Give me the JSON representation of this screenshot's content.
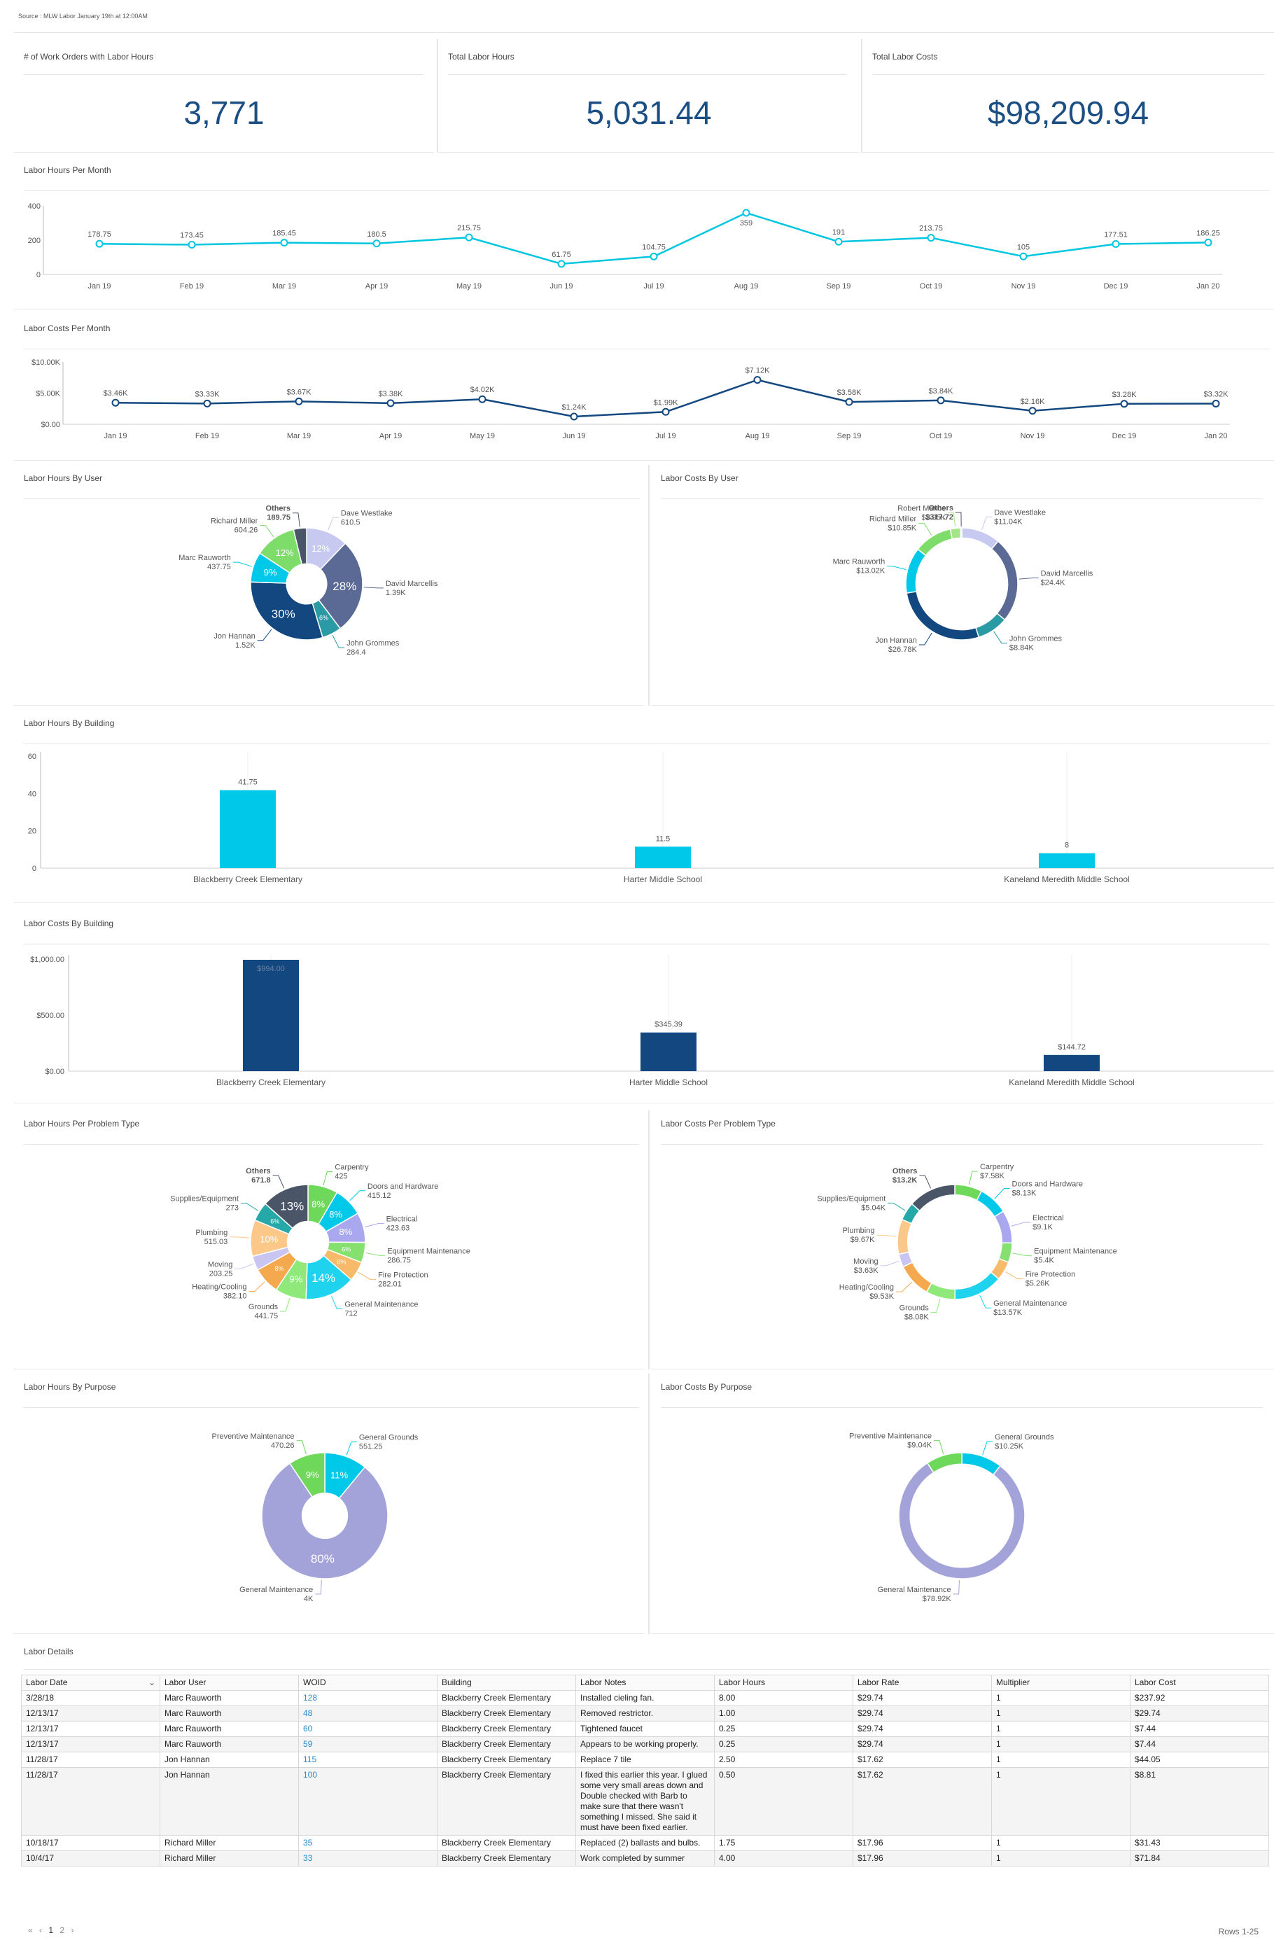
{
  "source": "Source : MLW Labor January 19th at 12:00AM",
  "kpis": [
    {
      "label": "# of Work Orders with Labor Hours",
      "value": "3,771"
    },
    {
      "label": "Total Labor Hours",
      "value": "5,031.44"
    },
    {
      "label": "Total Labor Costs",
      "value": "$98,209.94"
    }
  ],
  "titles": {
    "hours_month": "Labor Hours Per Month",
    "costs_month": "Labor Costs Per Month",
    "hours_user": "Labor Hours By User",
    "costs_user": "Labor Costs By User",
    "hours_building": "Labor Hours By Building",
    "costs_building": "Labor Costs By Building",
    "hours_problem": "Labor Hours Per Problem Type",
    "costs_problem": "Labor Costs Per Problem Type",
    "hours_purpose": "Labor Hours By Purpose",
    "costs_purpose": "Labor Costs By Purpose",
    "details": "Labor Details"
  },
  "chart_data": [
    {
      "id": "hours_month",
      "type": "line",
      "categories": [
        "Jan 19",
        "Feb 19",
        "Mar 19",
        "Apr 19",
        "May 19",
        "Jun 19",
        "Jul 19",
        "Aug 19",
        "Sep 19",
        "Oct 19",
        "Nov 19",
        "Dec 19",
        "Jan 20"
      ],
      "values": [
        178.75,
        173.45,
        185.45,
        180.5,
        215.75,
        61.75,
        104.75,
        359,
        191,
        213.75,
        105,
        177.51,
        186.25
      ],
      "labels": [
        "178.75",
        "173.45",
        "185.45",
        "180.5",
        "215.75",
        "61.75",
        "104.75",
        "359",
        "191",
        "213.75",
        "105",
        "177.51",
        "186.25"
      ],
      "yticks": [
        "400",
        "200",
        "0"
      ],
      "ylim": [
        0,
        400
      ],
      "color": "#00c6e0"
    },
    {
      "id": "costs_month",
      "type": "line",
      "categories": [
        "Jan 19",
        "Feb 19",
        "Mar 19",
        "Apr 19",
        "May 19",
        "Jun 19",
        "Jul 19",
        "Aug 19",
        "Sep 19",
        "Oct 19",
        "Nov 19",
        "Dec 19",
        "Jan 20"
      ],
      "values": [
        3460,
        3330,
        3670,
        3380,
        4020,
        1240,
        1990,
        7120,
        3580,
        3840,
        2160,
        3280,
        3320
      ],
      "labels": [
        "$3.46K",
        "$3.33K",
        "$3.67K",
        "$3.38K",
        "$4.02K",
        "$1.24K",
        "$1.99K",
        "$7.12K",
        "$3.58K",
        "$3.84K",
        "$2.16K",
        "$3.28K",
        "$3.32K"
      ],
      "yticks": [
        "$10.00K",
        "$5.00K",
        "$0.00"
      ],
      "ylim": [
        0,
        10000
      ],
      "color": "#12477f"
    },
    {
      "id": "hours_user",
      "type": "pie",
      "donut": "thick",
      "slices": [
        {
          "name": "Dave Westlake",
          "value": "610.5",
          "v": 610.5,
          "pct": "12%",
          "color": "#c7c9f0"
        },
        {
          "name": "David Marcellis",
          "value": "1.39K",
          "v": 1390,
          "pct": "28%",
          "color": "#5b6a94"
        },
        {
          "name": "John Grommes",
          "value": "284.4",
          "v": 284.4,
          "pct": "6%",
          "color": "#2a9aa4"
        },
        {
          "name": "Jon Hannan",
          "value": "1.52K",
          "v": 1520,
          "pct": "30%",
          "color": "#12477f"
        },
        {
          "name": "Marc Rauworth",
          "value": "437.75",
          "v": 437.75,
          "pct": "9%",
          "color": "#00c8e8"
        },
        {
          "name": "Richard Miller",
          "value": "604.26",
          "v": 604.26,
          "pct": "12%",
          "color": "#7ddc6a"
        },
        {
          "name": "Others",
          "value": "189.75",
          "v": 189.75,
          "pct": "",
          "color": "#4a5568",
          "bold": true
        }
      ]
    },
    {
      "id": "costs_user",
      "type": "pie",
      "donut": "thin",
      "slices": [
        {
          "name": "Dave Westlake",
          "value": "$11.04K",
          "v": 11040,
          "color": "#c7c9f0"
        },
        {
          "name": "David Marcellis",
          "value": "$24.4K",
          "v": 24400,
          "color": "#5b6a94"
        },
        {
          "name": "John Grommes",
          "value": "$8.84K",
          "v": 8840,
          "color": "#2a9aa4"
        },
        {
          "name": "Jon Hannan",
          "value": "$26.78K",
          "v": 26780,
          "color": "#12477f"
        },
        {
          "name": "Marc Rauworth",
          "value": "$13.02K",
          "v": 13020,
          "color": "#00c8e8"
        },
        {
          "name": "Richard Miller",
          "value": "$10.85K",
          "v": 10850,
          "color": "#7ddc6a"
        },
        {
          "name": "Robert Mance",
          "value": "$2.95K",
          "v": 2950,
          "color": "#a6e48a"
        },
        {
          "name": "Others",
          "value": "$317.72",
          "v": 317.72,
          "color": "#4a5568",
          "bold": true
        }
      ]
    },
    {
      "id": "hours_building",
      "type": "bar",
      "categories": [
        "Blackberry Creek Elementary",
        "Harter Middle School",
        "Kaneland Meredith Middle School"
      ],
      "values": [
        41.75,
        11.5,
        8
      ],
      "labels": [
        "41.75",
        "11.5",
        "8"
      ],
      "yticks": [
        "60",
        "40",
        "20",
        "0"
      ],
      "ylim": [
        0,
        60
      ],
      "color": "#00c8e8"
    },
    {
      "id": "costs_building",
      "type": "bar",
      "categories": [
        "Blackberry Creek Elementary",
        "Harter Middle School",
        "Kaneland Meredith Middle School"
      ],
      "values": [
        994,
        345.39,
        144.72
      ],
      "labels": [
        "$994.00",
        "$345.39",
        "$144.72"
      ],
      "yticks": [
        "$1,000.00",
        "$500.00",
        "$0.00"
      ],
      "ylim": [
        0,
        1000
      ],
      "color": "#12477f"
    },
    {
      "id": "hours_problem",
      "type": "pie",
      "donut": "thick",
      "slices": [
        {
          "name": "Carpentry",
          "value": "425",
          "v": 425,
          "pct": "8%",
          "color": "#6dd85a"
        },
        {
          "name": "Doors and Hardware",
          "value": "415.12",
          "v": 415.12,
          "pct": "8%",
          "color": "#00c8e8"
        },
        {
          "name": "Electrical",
          "value": "423.63",
          "v": 423.63,
          "pct": "8%",
          "color": "#a9a8ee"
        },
        {
          "name": "Equipment Maintenance",
          "value": "286.75",
          "v": 286.75,
          "pct": "6%",
          "color": "#86e070"
        },
        {
          "name": "Fire Protection",
          "value": "282.01",
          "v": 282.01,
          "pct": "6%",
          "color": "#f7b96a"
        },
        {
          "name": "General Maintenance",
          "value": "712",
          "v": 712,
          "pct": "14%",
          "color": "#1fd3ef"
        },
        {
          "name": "Grounds",
          "value": "441.75",
          "v": 441.75,
          "pct": "9%",
          "color": "#8ee87a"
        },
        {
          "name": "Heating/Cooling",
          "value": "382.10",
          "v": 382.1,
          "pct": "8%",
          "color": "#f5a94f"
        },
        {
          "name": "Moving",
          "value": "203.25",
          "v": 203.25,
          "pct": "",
          "color": "#c9c5f2"
        },
        {
          "name": "Plumbing",
          "value": "515.03",
          "v": 515.03,
          "pct": "10%",
          "color": "#fbc88a"
        },
        {
          "name": "Supplies/Equipment",
          "value": "273",
          "v": 273,
          "pct": "6%",
          "color": "#26a8a8"
        },
        {
          "name": "Others",
          "value": "671.8",
          "v": 671.8,
          "pct": "13%",
          "color": "#4a5568",
          "bold": true
        }
      ]
    },
    {
      "id": "costs_problem",
      "type": "pie",
      "donut": "thin",
      "slices": [
        {
          "name": "Carpentry",
          "value": "$7.58K",
          "v": 7580,
          "color": "#6dd85a"
        },
        {
          "name": "Doors and Hardware",
          "value": "$8.13K",
          "v": 8130,
          "color": "#00c8e8"
        },
        {
          "name": "Electrical",
          "value": "$9.1K",
          "v": 9100,
          "color": "#a9a8ee"
        },
        {
          "name": "Equipment Maintenance",
          "value": "$5.4K",
          "v": 5400,
          "color": "#86e070"
        },
        {
          "name": "Fire Protection",
          "value": "$5.26K",
          "v": 5260,
          "color": "#f7b96a"
        },
        {
          "name": "General Maintenance",
          "value": "$13.57K",
          "v": 13570,
          "color": "#1fd3ef"
        },
        {
          "name": "Grounds",
          "value": "$8.08K",
          "v": 8080,
          "color": "#8ee87a"
        },
        {
          "name": "Heating/Cooling",
          "value": "$9.53K",
          "v": 9530,
          "color": "#f5a94f"
        },
        {
          "name": "Moving",
          "value": "$3.63K",
          "v": 3630,
          "color": "#c9c5f2"
        },
        {
          "name": "Plumbing",
          "value": "$9.67K",
          "v": 9670,
          "color": "#fbc88a"
        },
        {
          "name": "Supplies/Equipment",
          "value": "$5.04K",
          "v": 5040,
          "color": "#26a8a8"
        },
        {
          "name": "Others",
          "value": "$13.2K",
          "v": 13200,
          "color": "#4a5568",
          "bold": true
        }
      ]
    },
    {
      "id": "hours_purpose",
      "type": "pie",
      "donut": "thick",
      "slices": [
        {
          "name": "General Grounds",
          "value": "551.25",
          "v": 551.25,
          "pct": "11%",
          "color": "#00c8e8"
        },
        {
          "name": "General Maintenance",
          "value": "4K",
          "v": 4000,
          "pct": "80%",
          "color": "#a3a3da"
        },
        {
          "name": "Preventive Maintenance",
          "value": "470.26",
          "v": 470.26,
          "pct": "9%",
          "color": "#6dd85a"
        }
      ]
    },
    {
      "id": "costs_purpose",
      "type": "pie",
      "donut": "thin",
      "slices": [
        {
          "name": "General Grounds",
          "value": "$10.25K",
          "v": 10250,
          "color": "#00c8e8"
        },
        {
          "name": "General Maintenance",
          "value": "$78.92K",
          "v": 78920,
          "color": "#a3a3da"
        },
        {
          "name": "Preventive Maintenance",
          "value": "$9.04K",
          "v": 9040,
          "color": "#6dd85a"
        }
      ]
    }
  ],
  "table": {
    "columns": [
      "Labor Date",
      "Labor User",
      "WOID",
      "Building",
      "Labor Notes",
      "Labor Hours",
      "Labor Rate",
      "Multiplier",
      "Labor Cost"
    ],
    "rows": [
      [
        "3/28/18",
        "Marc Rauworth",
        "128",
        "Blackberry Creek Elementary",
        "Installed cieling fan.",
        "8.00",
        "$29.74",
        "1",
        "$237.92"
      ],
      [
        "12/13/17",
        "Marc Rauworth",
        "48",
        "Blackberry Creek Elementary",
        "Removed restrictor.",
        "1.00",
        "$29.74",
        "1",
        "$29.74"
      ],
      [
        "12/13/17",
        "Marc Rauworth",
        "60",
        "Blackberry Creek Elementary",
        "Tightened faucet",
        "0.25",
        "$29.74",
        "1",
        "$7.44"
      ],
      [
        "12/13/17",
        "Marc Rauworth",
        "59",
        "Blackberry Creek Elementary",
        "Appears to be working properly.",
        "0.25",
        "$29.74",
        "1",
        "$7.44"
      ],
      [
        "11/28/17",
        "Jon Hannan",
        "115",
        "Blackberry Creek Elementary",
        "Replace 7 tile",
        "2.50",
        "$17.62",
        "1",
        "$44.05"
      ],
      [
        "11/28/17",
        "Jon Hannan",
        "100",
        "Blackberry Creek Elementary",
        "I fixed this earlier this year.  I glued some very small areas down and Double checked with Barb to make sure that there wasn't something I missed.  She said it must have been fixed earlier.",
        "0.50",
        "$17.62",
        "1",
        "$8.81"
      ],
      [
        "10/18/17",
        "Richard Miller",
        "35",
        "Blackberry Creek Elementary",
        "Replaced (2) ballasts and bulbs.",
        "1.75",
        "$17.96",
        "1",
        "$31.43"
      ],
      [
        "10/4/17",
        "Richard Miller",
        "33",
        "Blackberry Creek Elementary",
        "Work completed by summer",
        "4.00",
        "$17.96",
        "1",
        "$71.84"
      ]
    ]
  },
  "pagination": {
    "first": "«",
    "prev": "‹",
    "page1": "1",
    "page2": "2",
    "next": "›",
    "rows": "Rows 1-25"
  }
}
